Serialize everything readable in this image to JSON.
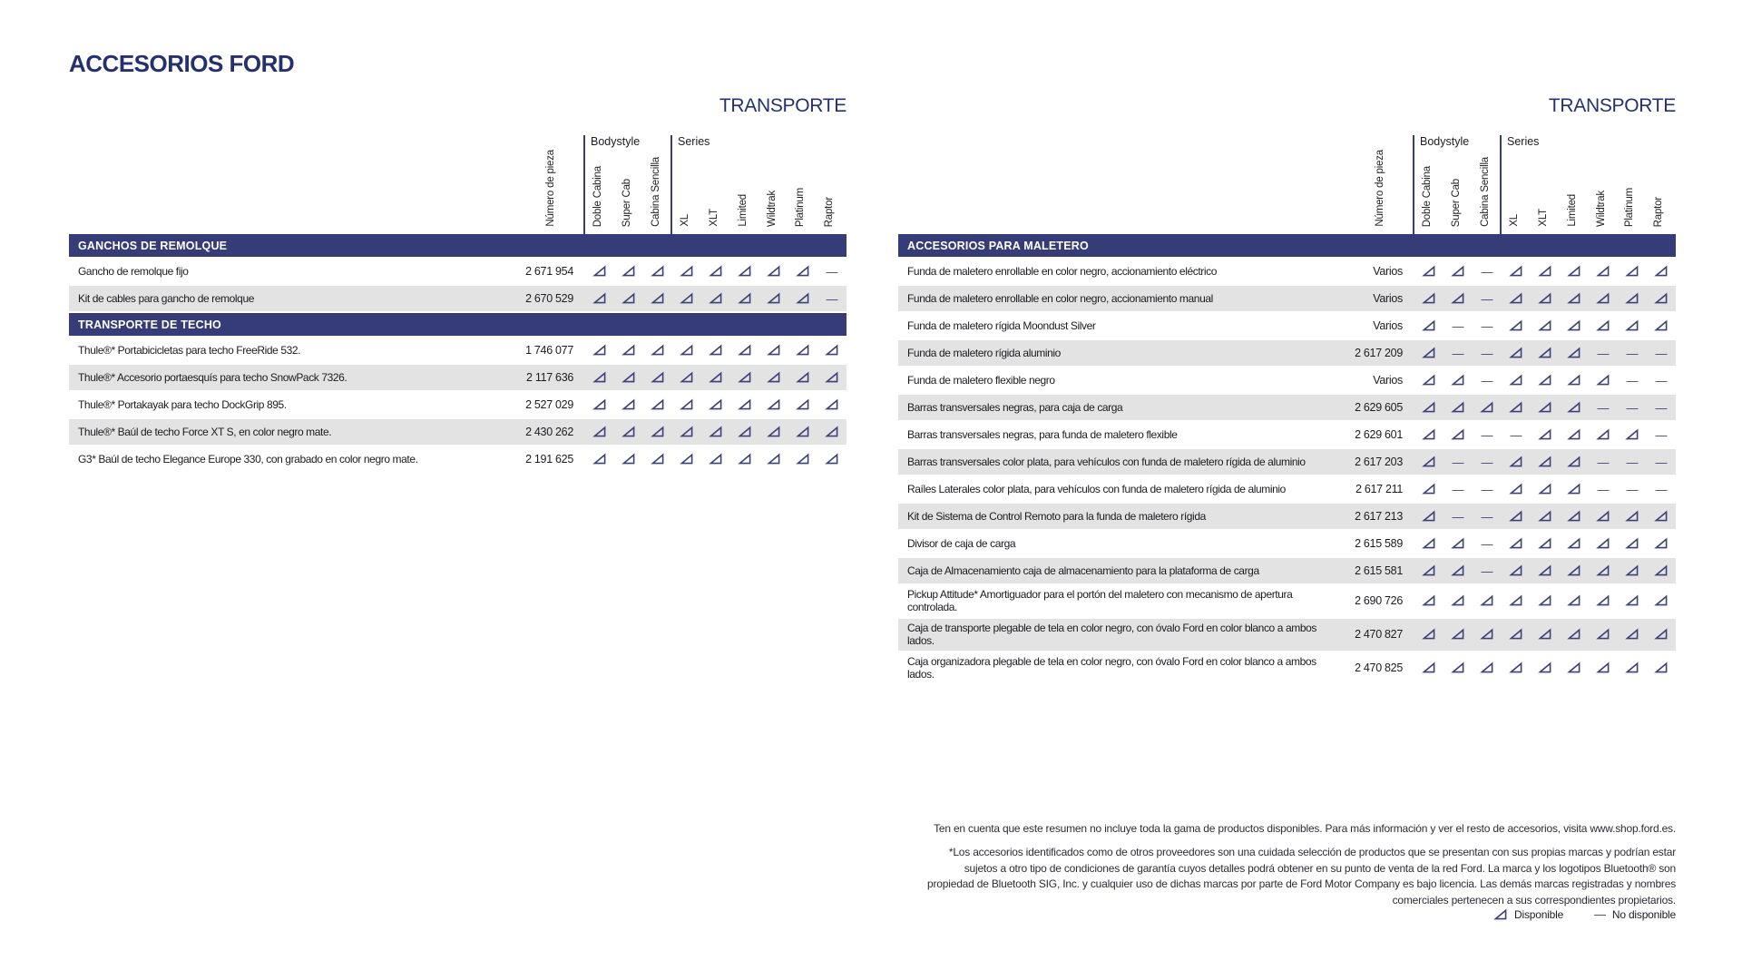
{
  "page": {
    "title": "ACCESORIOS FORD"
  },
  "colors": {
    "navy": "#24316e",
    "bar": "#353c78",
    "row_alt": "#e3e3e3",
    "mark": "#3d4178"
  },
  "columns": {
    "part": "Número de pieza",
    "groups": [
      {
        "label": "Bodystyle",
        "cols": [
          "Doble Cabina",
          "Super Cab",
          "Cabina Sencilla"
        ]
      },
      {
        "label": "Series",
        "cols": [
          "XL",
          "XLT",
          "Limited",
          "Wildtrak",
          "Platinum",
          "Raptor"
        ]
      }
    ]
  },
  "legend": {
    "available_icon": "right-triangle-icon",
    "available": "Disponible",
    "not_available_symbol": "—",
    "not_available": "No disponible"
  },
  "tables": [
    {
      "title": "TRANSPORTE",
      "rows": [
        {
          "type": "section",
          "label": "GANCHOS DE REMOLQUE"
        },
        {
          "type": "item",
          "label": "Gancho de remolque fijo",
          "part": "2 671 954",
          "marks": [
            "y",
            "y",
            "y",
            "y",
            "y",
            "y",
            "y",
            "y",
            "n"
          ]
        },
        {
          "type": "item",
          "label": "Kit de cables para gancho de remolque",
          "part": "2 670 529",
          "marks": [
            "y",
            "y",
            "y",
            "y",
            "y",
            "y",
            "y",
            "y",
            "n"
          ]
        },
        {
          "type": "section",
          "label": "TRANSPORTE DE TECHO"
        },
        {
          "type": "item",
          "label": "Thule®* Portabicicletas para techo FreeRide 532.",
          "part": "1 746 077",
          "marks": [
            "y",
            "y",
            "y",
            "y",
            "y",
            "y",
            "y",
            "y",
            "y"
          ]
        },
        {
          "type": "item",
          "label": "Thule®* Accesorio portaesquís para techo SnowPack 7326.",
          "part": "2 117 636",
          "marks": [
            "y",
            "y",
            "y",
            "y",
            "y",
            "y",
            "y",
            "y",
            "y"
          ]
        },
        {
          "type": "item",
          "label": "Thule®* Portakayak para techo DockGrip 895.",
          "part": "2 527 029",
          "marks": [
            "y",
            "y",
            "y",
            "y",
            "y",
            "y",
            "y",
            "y",
            "y"
          ]
        },
        {
          "type": "item",
          "label": "Thule®* Baúl de techo Force XT S, en color negro mate.",
          "part": "2 430 262",
          "marks": [
            "y",
            "y",
            "y",
            "y",
            "y",
            "y",
            "y",
            "y",
            "y"
          ]
        },
        {
          "type": "item",
          "label": "G3* Baúl de techo Elegance Europe 330, con grabado en color negro mate.",
          "part": "2 191 625",
          "marks": [
            "y",
            "y",
            "y",
            "y",
            "y",
            "y",
            "y",
            "y",
            "y"
          ]
        }
      ]
    },
    {
      "title": "TRANSPORTE",
      "rows": [
        {
          "type": "section",
          "label": "ACCESORIOS PARA MALETERO"
        },
        {
          "type": "item",
          "label": "Funda de maletero enrollable en color negro, accionamiento eléctrico",
          "part": "Varios",
          "marks": [
            "y",
            "y",
            "n",
            "y",
            "y",
            "y",
            "y",
            "y",
            "y"
          ]
        },
        {
          "type": "item",
          "label": "Funda de maletero enrollable en color negro, accionamiento manual",
          "part": "Varios",
          "marks": [
            "y",
            "y",
            "n",
            "y",
            "y",
            "y",
            "y",
            "y",
            "y"
          ]
        },
        {
          "type": "item",
          "label": "Funda de maletero rígida Moondust Silver",
          "part": "Varios",
          "marks": [
            "y",
            "n",
            "n",
            "y",
            "y",
            "y",
            "y",
            "y",
            "y"
          ]
        },
        {
          "type": "item",
          "label": "Funda de maletero rígida aluminio",
          "part": "2 617 209",
          "marks": [
            "y",
            "n",
            "n",
            "y",
            "y",
            "y",
            "n",
            "n",
            "n"
          ]
        },
        {
          "type": "item",
          "label": "Funda de maletero flexible negro",
          "part": "Varios",
          "marks": [
            "y",
            "y",
            "n",
            "y",
            "y",
            "y",
            "y",
            "n",
            "n"
          ]
        },
        {
          "type": "item",
          "label": "Barras transversales negras, para caja de carga",
          "part": "2 629 605",
          "marks": [
            "y",
            "y",
            "y",
            "y",
            "y",
            "y",
            "n",
            "n",
            "n"
          ]
        },
        {
          "type": "item",
          "label": "Barras transversales negras, para funda de maletero flexible",
          "part": "2 629 601",
          "marks": [
            "y",
            "y",
            "n",
            "n",
            "y",
            "y",
            "y",
            "y",
            "n"
          ]
        },
        {
          "type": "item",
          "label": "Barras transversales color plata, para vehículos con funda de maletero rígida de aluminio",
          "part": "2 617 203",
          "marks": [
            "y",
            "n",
            "n",
            "y",
            "y",
            "y",
            "n",
            "n",
            "n"
          ]
        },
        {
          "type": "item",
          "label": "Raíles Laterales color plata, para vehículos con funda de maletero rígida de aluminio",
          "part": "2 617 211",
          "marks": [
            "y",
            "n",
            "n",
            "y",
            "y",
            "y",
            "n",
            "n",
            "n"
          ]
        },
        {
          "type": "item",
          "label": "Kit de Sistema de Control Remoto para la funda de maletero rígida",
          "part": "2 617 213",
          "marks": [
            "y",
            "n",
            "n",
            "y",
            "y",
            "y",
            "y",
            "y",
            "y"
          ]
        },
        {
          "type": "item",
          "label": "Divisor de caja de carga",
          "part": "2 615 589",
          "marks": [
            "y",
            "y",
            "n",
            "y",
            "y",
            "y",
            "y",
            "y",
            "y"
          ]
        },
        {
          "type": "item",
          "label": "Caja de Almacenamiento caja de almacenamiento para la plataforma de carga",
          "part": "2 615 581",
          "marks": [
            "y",
            "y",
            "n",
            "y",
            "y",
            "y",
            "y",
            "y",
            "y"
          ]
        },
        {
          "type": "item",
          "label": "Pickup Attitude* Amortiguador para el portón del maletero con mecanismo de apertura controlada.",
          "part": "2 690 726",
          "marks": [
            "y",
            "y",
            "y",
            "y",
            "y",
            "y",
            "y",
            "y",
            "y"
          ]
        },
        {
          "type": "item",
          "label": "Caja de transporte plegable de tela en color negro, con óvalo Ford en color blanco a ambos lados.",
          "part": "2 470 827",
          "marks": [
            "y",
            "y",
            "y",
            "y",
            "y",
            "y",
            "y",
            "y",
            "y"
          ]
        },
        {
          "type": "item",
          "label": "Caja organizadora plegable de tela en color negro, con óvalo Ford en color blanco a ambos lados.",
          "part": "2 470 825",
          "marks": [
            "y",
            "y",
            "y",
            "y",
            "y",
            "y",
            "y",
            "y",
            "y"
          ]
        }
      ]
    }
  ],
  "footnotes": [
    "Ten en cuenta que este resumen no incluye toda la gama de productos disponibles. Para más información y ver el resto de accesorios, visita www.shop.ford.es.",
    "*Los accesorios identificados como de otros proveedores son una cuidada selección de productos que se presentan con sus propias marcas y podrían estar sujetos a otro tipo de condiciones de garantía cuyos detalles podrá obtener en su punto de venta de la red Ford. La marca y los logotipos Bluetooth® son propiedad de Bluetooth SIG, Inc. y cualquier uso de dichas marcas por parte de Ford Motor Company es bajo licencia. Las demás marcas registradas y nombres comerciales pertenecen a sus correspondientes propietarios."
  ]
}
